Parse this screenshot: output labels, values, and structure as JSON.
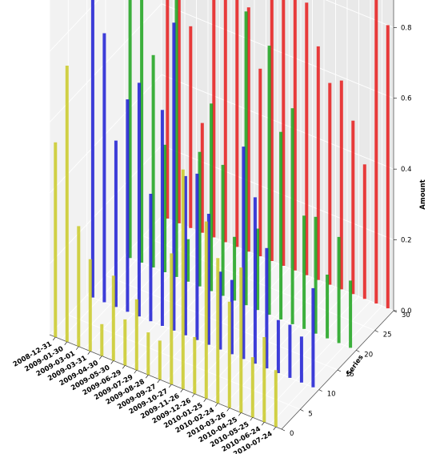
{
  "chart_data": {
    "type": "bar",
    "subtype": "3d-bar",
    "title": "",
    "xlabel": "",
    "ylabel": "Series",
    "zlabel": "Amount",
    "x_categories": [
      "2008-12-31",
      "2009-01-30",
      "2009-03-01",
      "2009-03-31",
      "2009-04-30",
      "2009-05-30",
      "2009-06-29",
      "2009-07-29",
      "2009-08-28",
      "2009-09-27",
      "2009-10-27",
      "2009-11-26",
      "2009-12-26",
      "2010-01-25",
      "2010-02-24",
      "2010-03-26",
      "2010-04-25",
      "2010-05-25",
      "2010-06-24",
      "2010-07-24"
    ],
    "y_ticks": [
      0,
      5,
      10,
      15,
      20,
      25,
      30
    ],
    "z_ticks": [
      0.0,
      0.2,
      0.4,
      0.6,
      0.8
    ],
    "ylim": [
      0,
      30
    ],
    "zlim": [
      0,
      0.95
    ],
    "grid": true,
    "series": [
      {
        "y": 0,
        "color": "#c8c81e",
        "values": [
          0.55,
          0.78,
          0.34,
          0.26,
          0.09,
          0.24,
          0.13,
          0.2,
          0.12,
          0.11,
          0.37,
          0.62,
          0.16,
          0.5,
          0.41,
          0.3,
          0.41,
          0.17,
          0.24,
          0.16
        ]
      },
      {
        "y": 10,
        "color": "#1414d2",
        "values": [
          0.85,
          0.76,
          0.47,
          0.6,
          0.66,
          0.36,
          0.61,
          0.87,
          0.45,
          0.47,
          0.37,
          0.22,
          0.21,
          0.6,
          0.47,
          0.34,
          0.15,
          0.15,
          0.13,
          0.28
        ]
      },
      {
        "y": 20,
        "color": "#14a014",
        "values": [
          0.95,
          0.83,
          0.6,
          0.36,
          0.88,
          0.12,
          0.38,
          0.53,
          0.37,
          0.18,
          0.83,
          0.23,
          0.76,
          0.53,
          0.61,
          0.32,
          0.33,
          0.18,
          0.3,
          0.19
        ]
      },
      {
        "y": 30,
        "color": "#e61414",
        "values": [
          0.98,
          0.7,
          0.57,
          0.31,
          0.91,
          0.75,
          0.7,
          0.69,
          0.53,
          0.86,
          0.85,
          0.78,
          0.77,
          0.66,
          0.57,
          0.59,
          0.49,
          0.38,
          0.86,
          0.8
        ]
      }
    ]
  }
}
